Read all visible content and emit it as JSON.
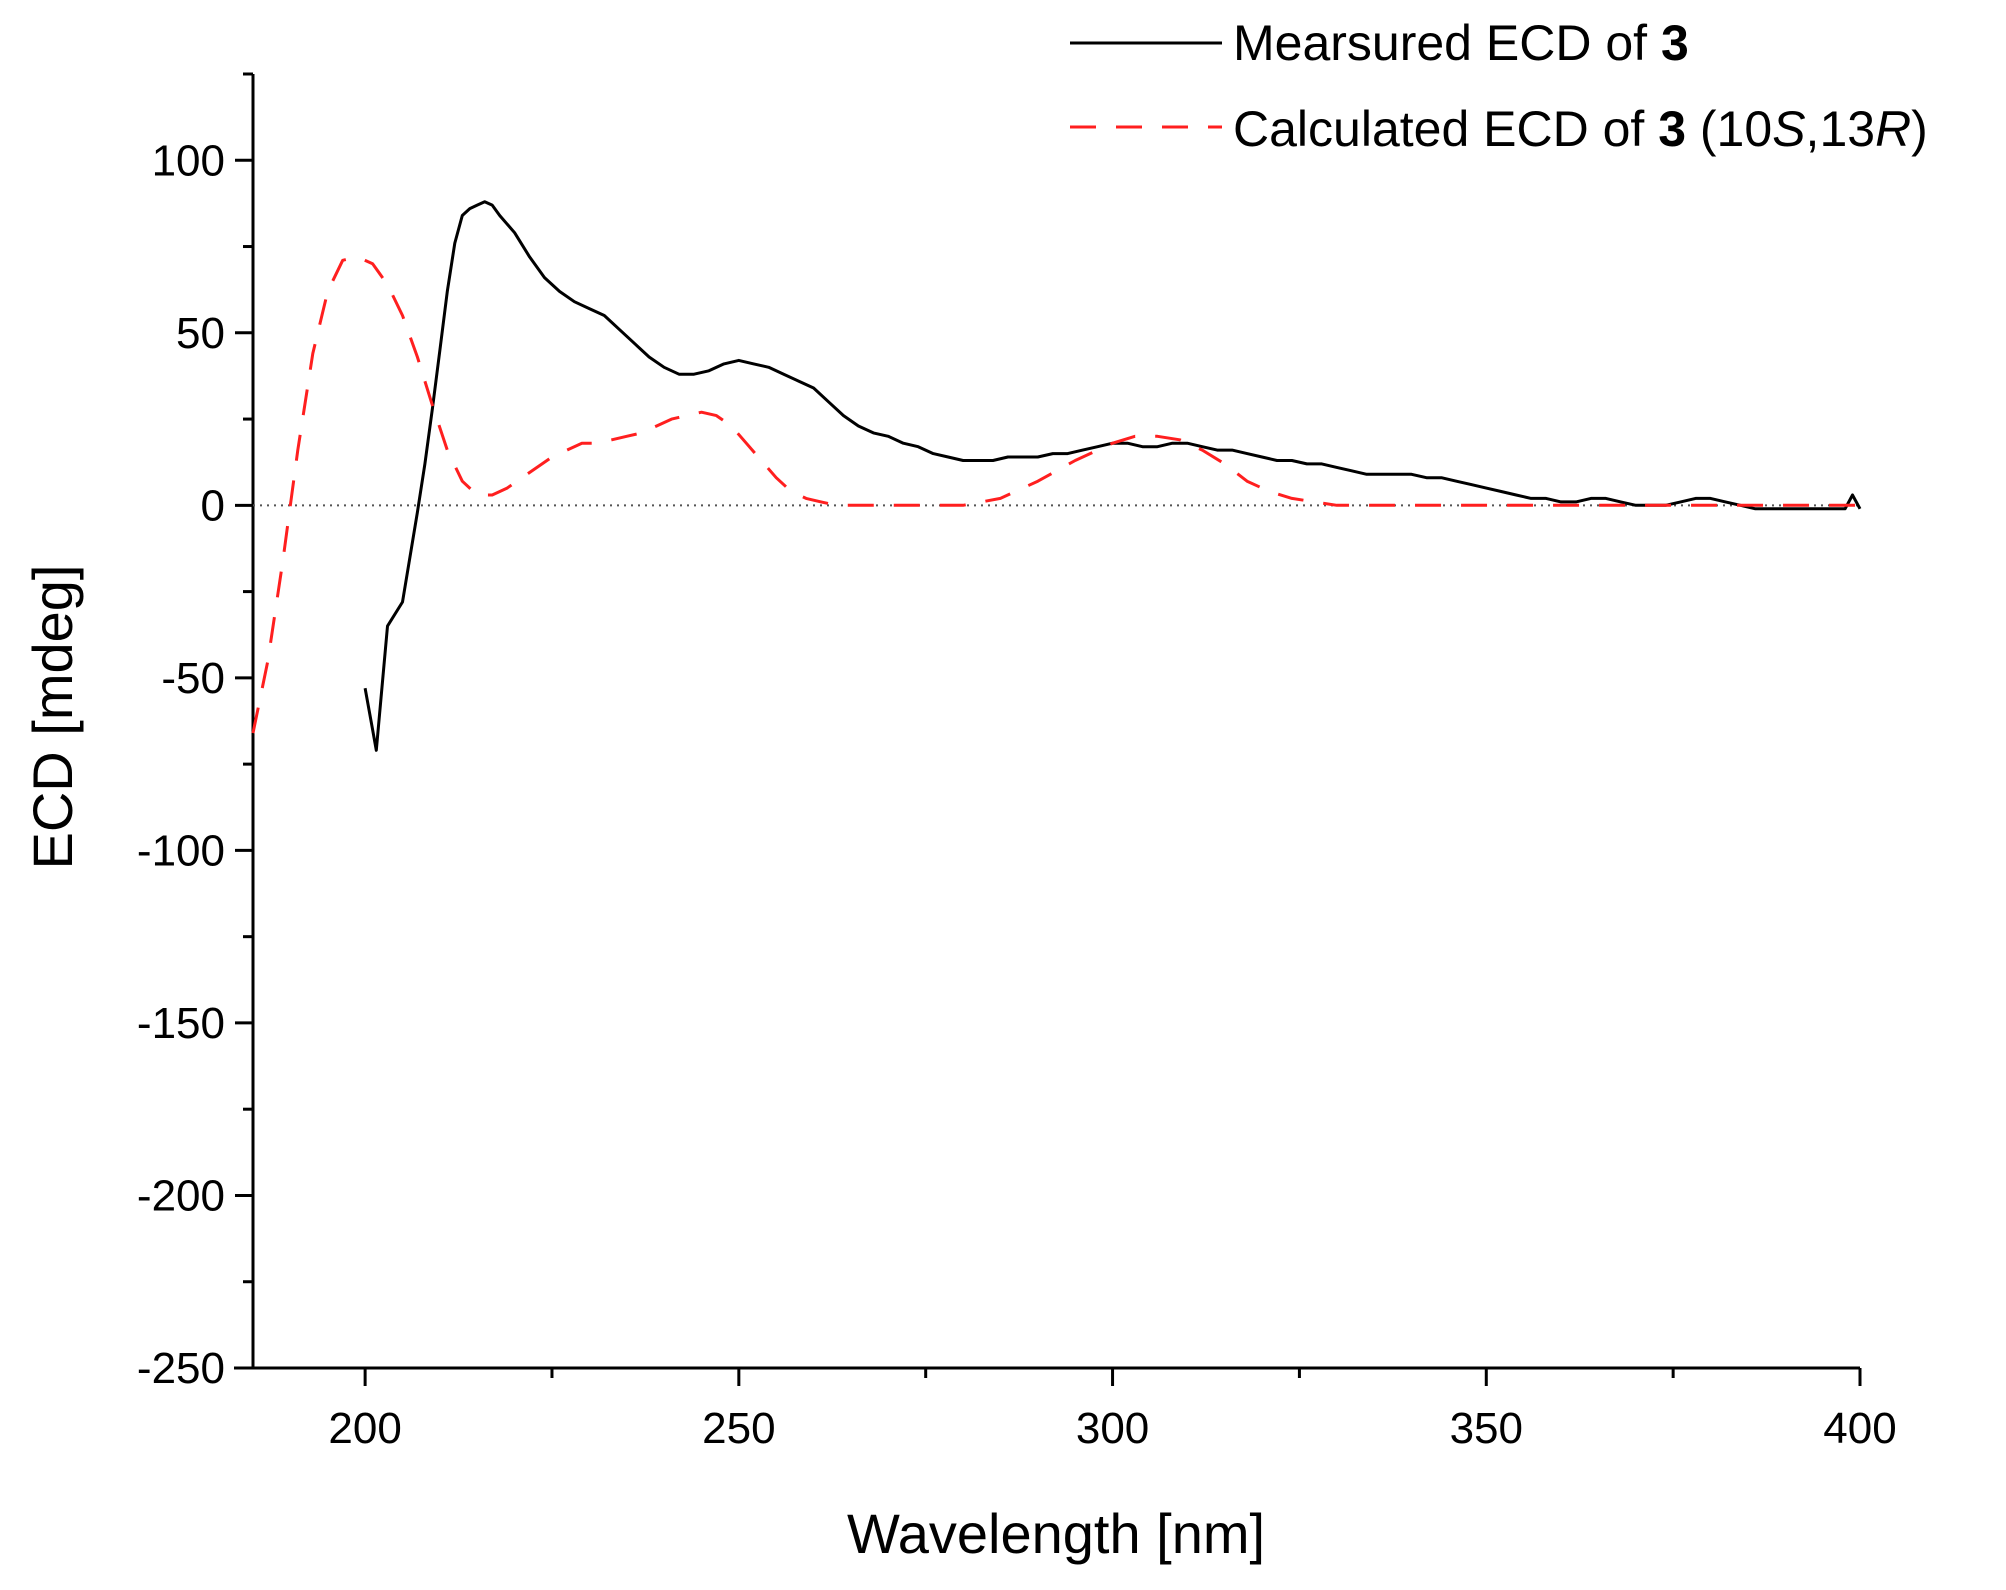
{
  "chart_data": {
    "type": "line",
    "xlabel": "Wavelength [nm]",
    "ylabel": "ECD [mdeg]",
    "xlim": [
      185,
      400
    ],
    "ylim": [
      -250,
      125
    ],
    "x_ticks": [
      200,
      250,
      300,
      350,
      400
    ],
    "x_tick_labels": [
      "200",
      "250",
      "300",
      "350",
      "400"
    ],
    "y_ticks": [
      -250,
      -200,
      -150,
      -100,
      -50,
      0,
      50,
      100
    ],
    "y_tick_labels": [
      "-250",
      "-200",
      "-150",
      "-100",
      "-50",
      "0",
      "50",
      "100"
    ],
    "zero_line": true,
    "grid": false,
    "legend_position": "top-right",
    "series": [
      {
        "name": "Mearsured ECD of 3",
        "legend": {
          "prefix": "Mearsured ECD of ",
          "bold": "3",
          "suffix": ""
        },
        "style": "solid",
        "color": "#000000",
        "x": [
          200,
          201,
          201.5,
          203,
          205,
          207,
          208,
          209,
          210,
          211,
          212,
          213,
          214,
          215,
          216,
          217,
          218,
          220,
          222,
          224,
          226,
          228,
          230,
          232,
          234,
          236,
          238,
          240,
          242,
          244,
          246,
          248,
          250,
          252,
          254,
          256,
          258,
          260,
          262,
          264,
          266,
          268,
          270,
          272,
          274,
          276,
          278,
          280,
          282,
          284,
          286,
          288,
          290,
          292,
          294,
          296,
          298,
          300,
          302,
          304,
          306,
          308,
          310,
          312,
          314,
          316,
          318,
          320,
          322,
          324,
          326,
          328,
          330,
          332,
          334,
          336,
          338,
          340,
          342,
          344,
          346,
          348,
          350,
          352,
          354,
          356,
          358,
          360,
          362,
          364,
          366,
          368,
          370,
          372,
          374,
          376,
          378,
          380,
          382,
          384,
          386,
          388,
          390,
          392,
          394,
          396,
          398,
          399,
          400
        ],
        "y": [
          -53,
          -65,
          -71,
          -35,
          -28,
          -2,
          12,
          28,
          45,
          62,
          76,
          84,
          86,
          87,
          88,
          87,
          84,
          79,
          72,
          66,
          62,
          59,
          57,
          55,
          51,
          47,
          43,
          40,
          38,
          38,
          39,
          41,
          42,
          41,
          40,
          38,
          36,
          34,
          30,
          26,
          23,
          21,
          20,
          18,
          17,
          15,
          14,
          13,
          13,
          13,
          14,
          14,
          14,
          15,
          15,
          16,
          17,
          18,
          18,
          17,
          17,
          18,
          18,
          17,
          16,
          16,
          15,
          14,
          13,
          13,
          12,
          12,
          11,
          10,
          9,
          9,
          9,
          9,
          8,
          8,
          7,
          6,
          5,
          4,
          3,
          2,
          2,
          1,
          1,
          2,
          2,
          1,
          0,
          0,
          0,
          1,
          2,
          2,
          1,
          0,
          -1,
          -1,
          -1,
          -1,
          -1,
          -1,
          -1,
          3,
          -1
        ]
      },
      {
        "name": "Calculated ECD of 3 (10S,13R)",
        "legend": {
          "prefix": "Calculated ECD of ",
          "bold": "3",
          "suffix_parts": [
            " (10",
            "S",
            ",13",
            "R",
            ")"
          ]
        },
        "style": "dashed",
        "color": "#ff1f1f",
        "x": [
          185,
          187,
          189,
          191,
          193,
          195,
          197,
          199,
          201,
          203,
          205,
          207,
          209,
          211,
          213,
          215,
          217,
          219,
          221,
          223,
          225,
          227,
          229,
          231,
          233,
          235,
          237,
          239,
          241,
          243,
          245,
          247,
          249,
          251,
          253,
          255,
          257,
          259,
          261,
          263,
          266,
          270,
          275,
          280,
          285,
          290,
          295,
          300,
          303,
          306,
          309,
          312,
          315,
          318,
          321,
          324,
          327,
          330,
          335,
          340,
          350,
          360,
          370,
          380,
          390,
          400
        ],
        "y": [
          -66,
          -45,
          -16,
          16,
          44,
          62,
          71,
          72,
          70,
          64,
          55,
          43,
          29,
          16,
          7,
          3,
          3,
          5,
          8,
          11,
          14,
          16,
          18,
          18,
          19,
          20,
          21,
          23,
          25,
          26,
          27,
          26,
          23,
          18,
          13,
          8,
          4,
          2,
          1,
          0,
          0,
          0,
          0,
          0,
          2,
          7,
          13,
          18,
          20,
          20,
          19,
          16,
          12,
          7,
          4,
          2,
          1,
          0,
          0,
          0,
          0,
          0,
          0,
          0,
          0,
          0
        ]
      }
    ]
  }
}
